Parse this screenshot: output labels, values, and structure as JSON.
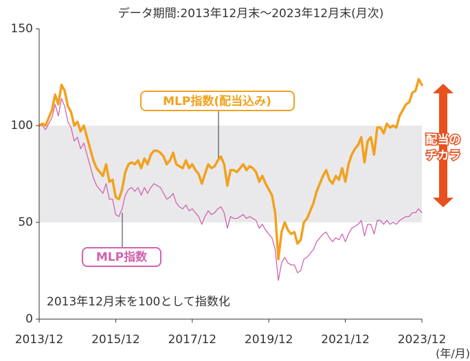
{
  "chart_data": {
    "type": "line",
    "subtitle": "データ期間:2013年12月末～2023年12月末(月次)",
    "x_label": "(年/月)",
    "annotation": "2013年12月末を100として指数化",
    "dividend_label": [
      "配当の",
      "チカラ"
    ],
    "ylim": [
      0,
      150
    ],
    "yticks": [
      0,
      50,
      100,
      150
    ],
    "shaded_range": [
      50,
      100
    ],
    "shaded_color": "#e9e9eb",
    "arrow_color": "#e8501e",
    "categories": [
      "2013/12",
      null,
      null,
      null,
      null,
      null,
      null,
      null,
      null,
      null,
      null,
      null,
      null,
      null,
      null,
      null,
      null,
      null,
      null,
      null,
      null,
      null,
      null,
      null,
      "2015/12",
      null,
      null,
      null,
      null,
      null,
      null,
      null,
      null,
      null,
      null,
      null,
      null,
      null,
      null,
      null,
      null,
      null,
      null,
      null,
      null,
      null,
      null,
      null,
      "2017/12",
      null,
      null,
      null,
      null,
      null,
      null,
      null,
      null,
      null,
      null,
      null,
      null,
      null,
      null,
      null,
      null,
      null,
      null,
      null,
      null,
      null,
      null,
      null,
      "2019/12",
      null,
      null,
      null,
      null,
      null,
      null,
      null,
      null,
      null,
      null,
      null,
      null,
      null,
      null,
      null,
      null,
      null,
      null,
      null,
      null,
      null,
      null,
      null,
      "2021/12",
      null,
      null,
      null,
      null,
      null,
      null,
      null,
      null,
      null,
      null,
      null,
      null,
      null,
      null,
      null,
      null,
      null,
      null,
      null,
      null,
      null,
      null,
      null,
      "2023/12"
    ],
    "series": [
      {
        "name": "MLP指数(配当込み)",
        "color": "#f2a11d",
        "width": 3.5,
        "values": [
          100,
          101,
          100,
          104,
          108,
          116,
          111,
          121,
          118,
          110,
          107,
          100,
          102,
          97,
          100,
          94,
          88,
          82,
          78,
          76,
          74,
          80,
          71,
          72,
          63,
          62,
          67,
          76,
          80,
          81,
          80,
          82,
          78,
          83,
          80,
          85,
          87,
          87,
          86,
          84,
          80,
          82,
          86,
          80,
          79,
          78,
          82,
          78,
          80,
          77,
          75,
          70,
          75,
          80,
          78,
          79,
          82,
          84,
          80,
          69,
          77,
          77,
          76,
          78,
          80,
          77,
          79,
          78,
          76,
          71,
          74,
          70,
          67,
          64,
          55,
          31,
          45,
          50,
          46,
          44,
          45,
          39,
          41,
          50,
          52,
          56,
          60,
          66,
          70,
          74,
          77,
          72,
          70,
          74,
          72,
          78,
          71,
          80,
          85,
          88,
          90,
          94,
          81,
          92,
          94,
          85,
          99,
          99,
          96,
          101,
          99,
          100,
          99,
          105,
          108,
          111,
          112,
          117,
          118,
          124,
          121
        ]
      },
      {
        "name": "MLP指数",
        "color": "#d163ae",
        "width": 1.3,
        "values": [
          100,
          100,
          98,
          101,
          104,
          111,
          105,
          114,
          110,
          102,
          99,
          92,
          94,
          88,
          91,
          85,
          79,
          73,
          69,
          67,
          65,
          70,
          62,
          62,
          54,
          53,
          57,
          64,
          67,
          68,
          66,
          68,
          64,
          68,
          65,
          68,
          70,
          69,
          68,
          65,
          62,
          63,
          65,
          60,
          58,
          57,
          59,
          56,
          57,
          55,
          53,
          49,
          53,
          56,
          54,
          55,
          57,
          58,
          55,
          47,
          53,
          52,
          52,
          53,
          54,
          52,
          53,
          52,
          51,
          47,
          49,
          46,
          44,
          42,
          36,
          20,
          29,
          32,
          29,
          28,
          28,
          24,
          25,
          31,
          32,
          34,
          36,
          40,
          42,
          44,
          45,
          42,
          40,
          42,
          41,
          44,
          40,
          44,
          47,
          48,
          49,
          51,
          43,
          49,
          49,
          44,
          51,
          51,
          49,
          51,
          49,
          50,
          49,
          51,
          52,
          53,
          53,
          55,
          55,
          57,
          55
        ]
      }
    ]
  }
}
